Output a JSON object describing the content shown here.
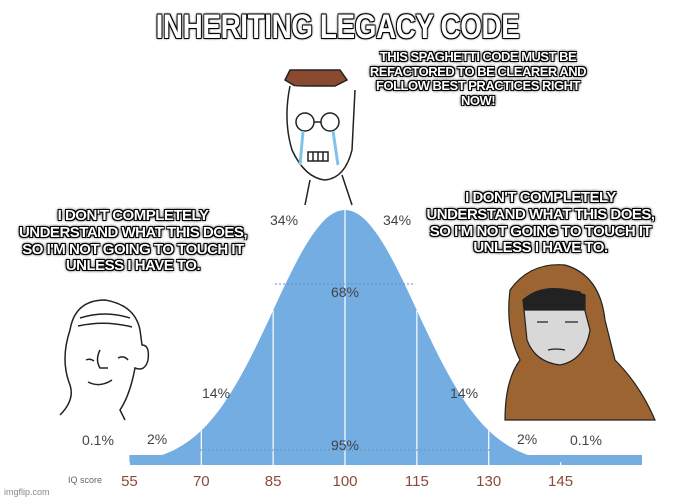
{
  "title": "INHERITING LEGACY CODE",
  "captions": {
    "top": "THIS SPAGHETTI CODE MUST BE REFACTORED TO BE CLEARER AND FOLLOW BEST PRACTICES RIGHT NOW!",
    "left": "I DON'T COMPLETELY UNDERSTAND WHAT THIS DOES, SO I'M NOT GOING TO TOUCH IT UNLESS I HAVE TO.",
    "right": "I DON'T COMPLETELY UNDERSTAND WHAT THIS DOES, SO I'M NOT GOING TO TOUCH IT UNLESS I HAVE TO."
  },
  "chart": {
    "axis_label": "IQ score",
    "ticks": [
      "55",
      "70",
      "85",
      "100",
      "115",
      "130",
      "145"
    ],
    "tick_values": [
      55,
      70,
      85,
      100,
      115,
      130,
      145
    ],
    "mean": 100,
    "sd": 15,
    "percent_labels": [
      "0.1%",
      "2%",
      "14%",
      "34%",
      "34%",
      "14%",
      "2%",
      "0.1%"
    ],
    "band_labels": [
      "68%",
      "95%"
    ],
    "fill_color": "#74ade2"
  },
  "watermark": "imgflip.com"
}
